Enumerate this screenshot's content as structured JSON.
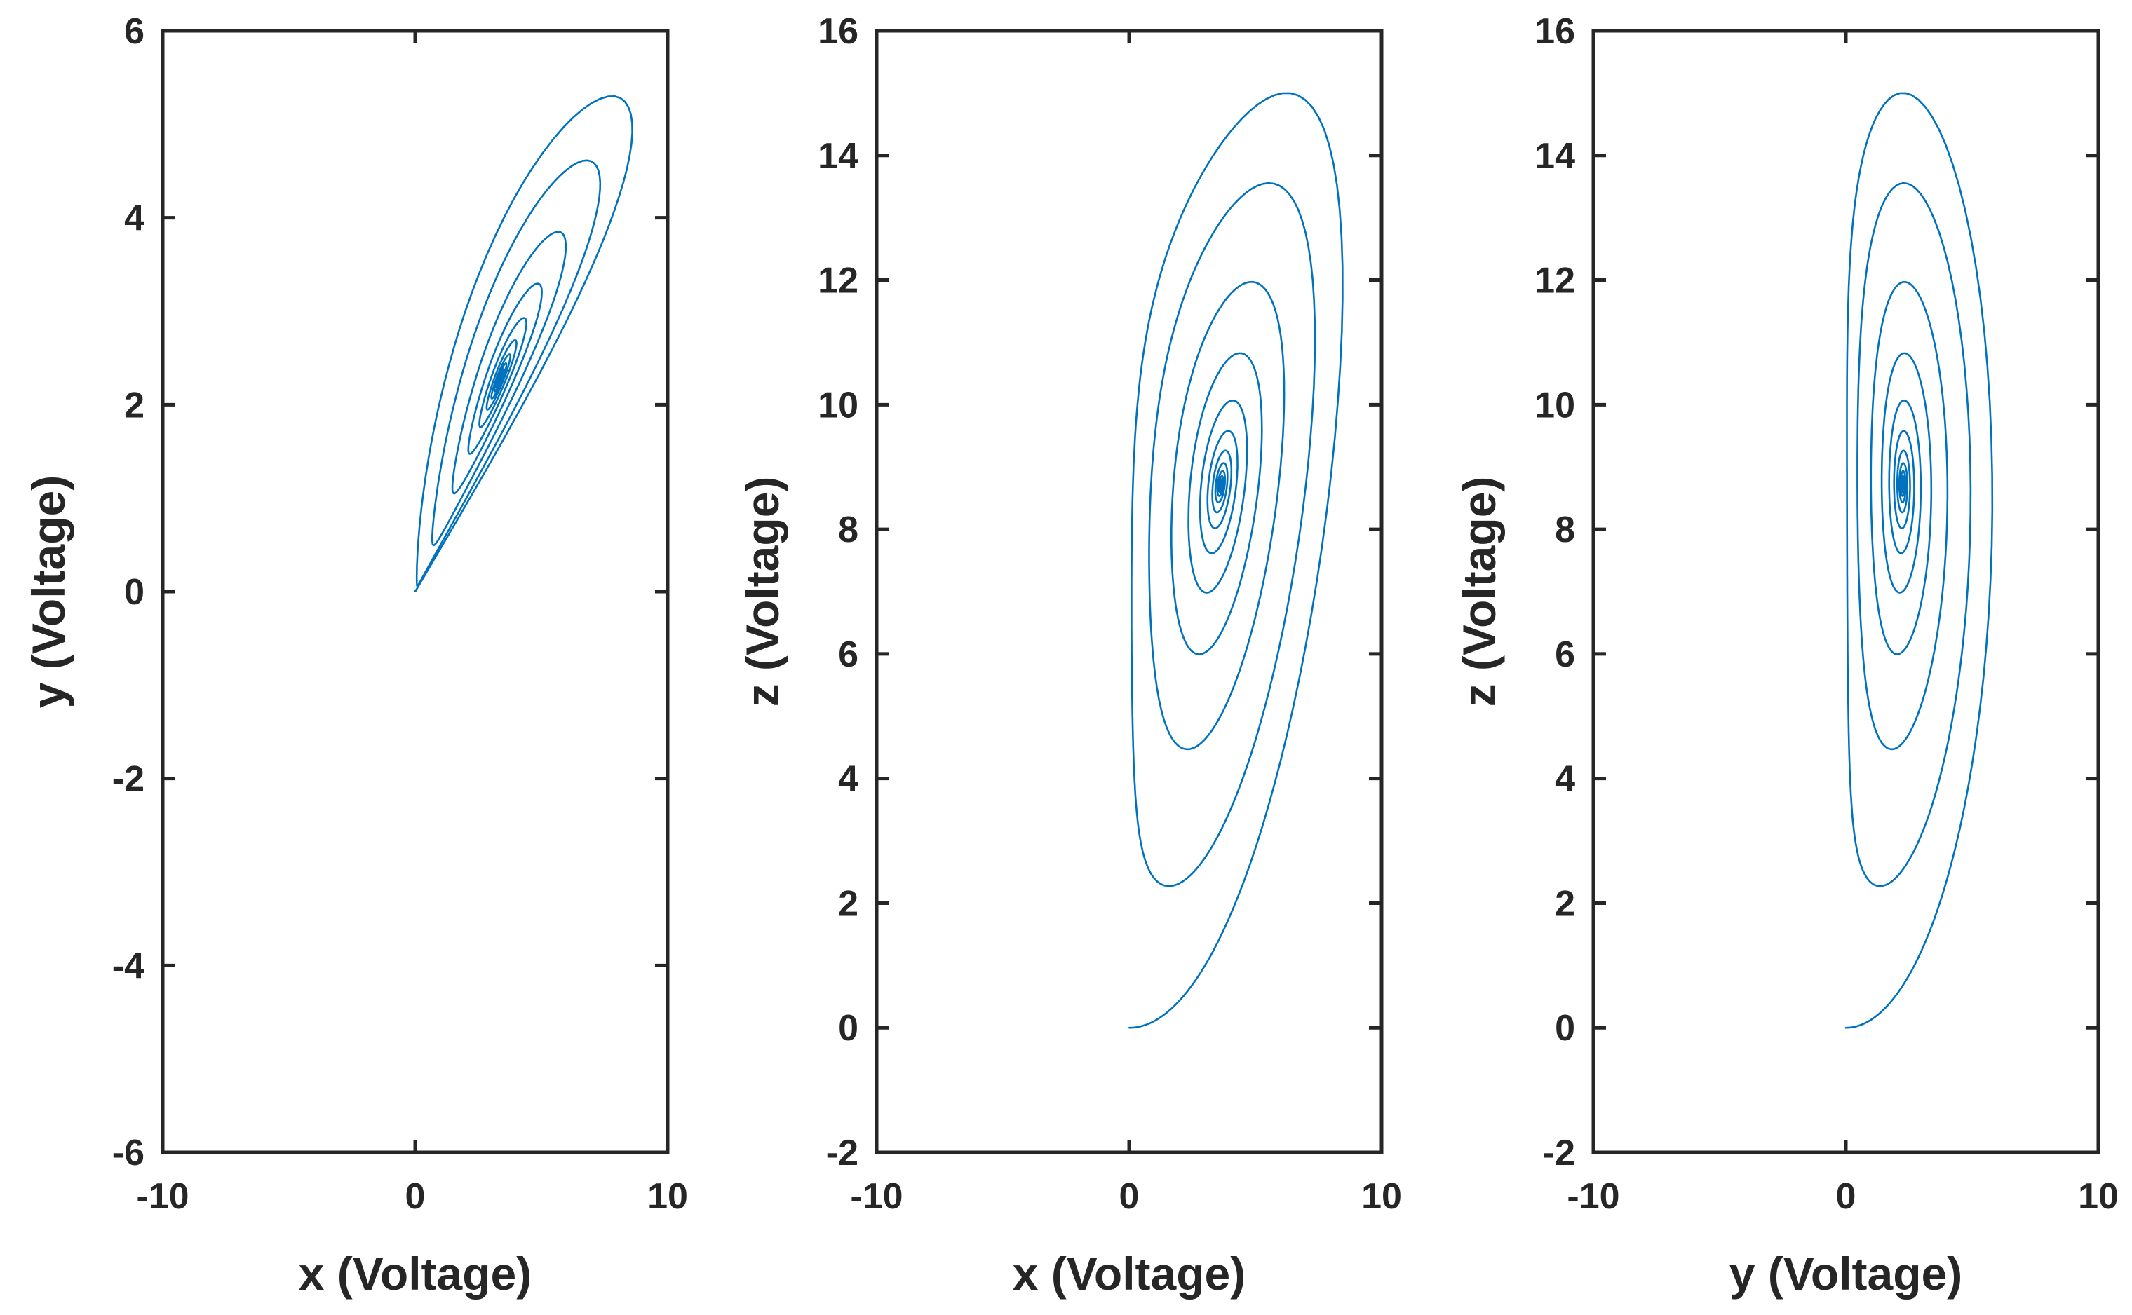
{
  "chart_data": [
    {
      "type": "line",
      "xlabel": "x (Voltage)",
      "ylabel": "y (Voltage)",
      "xlim": [
        -10,
        10
      ],
      "ylim": [
        -6,
        6
      ],
      "xticks": [
        "-10",
        "0",
        "10"
      ],
      "yticks": [
        "-6",
        "-4",
        "-2",
        "0",
        "2",
        "4",
        "6"
      ],
      "color": "#0072BD",
      "grid": false
    },
    {
      "type": "line",
      "xlabel": "x (Voltage)",
      "ylabel": "z (Voltage)",
      "xlim": [
        -10,
        10
      ],
      "ylim": [
        -2,
        16
      ],
      "xticks": [
        "-10",
        "0",
        "10"
      ],
      "yticks": [
        "-2",
        "0",
        "2",
        "4",
        "6",
        "8",
        "10",
        "12",
        "14",
        "16"
      ],
      "color": "#0072BD",
      "grid": false
    },
    {
      "type": "line",
      "xlabel": "y (Voltage)",
      "ylabel": "z (Voltage)",
      "xlim": [
        -10,
        10
      ],
      "ylim": [
        -2,
        16
      ],
      "xticks": [
        "-10",
        "0",
        "10"
      ],
      "yticks": [
        "-2",
        "0",
        "2",
        "4",
        "6",
        "8",
        "10",
        "12",
        "14",
        "16"
      ],
      "color": "#0072BD",
      "grid": false
    }
  ]
}
